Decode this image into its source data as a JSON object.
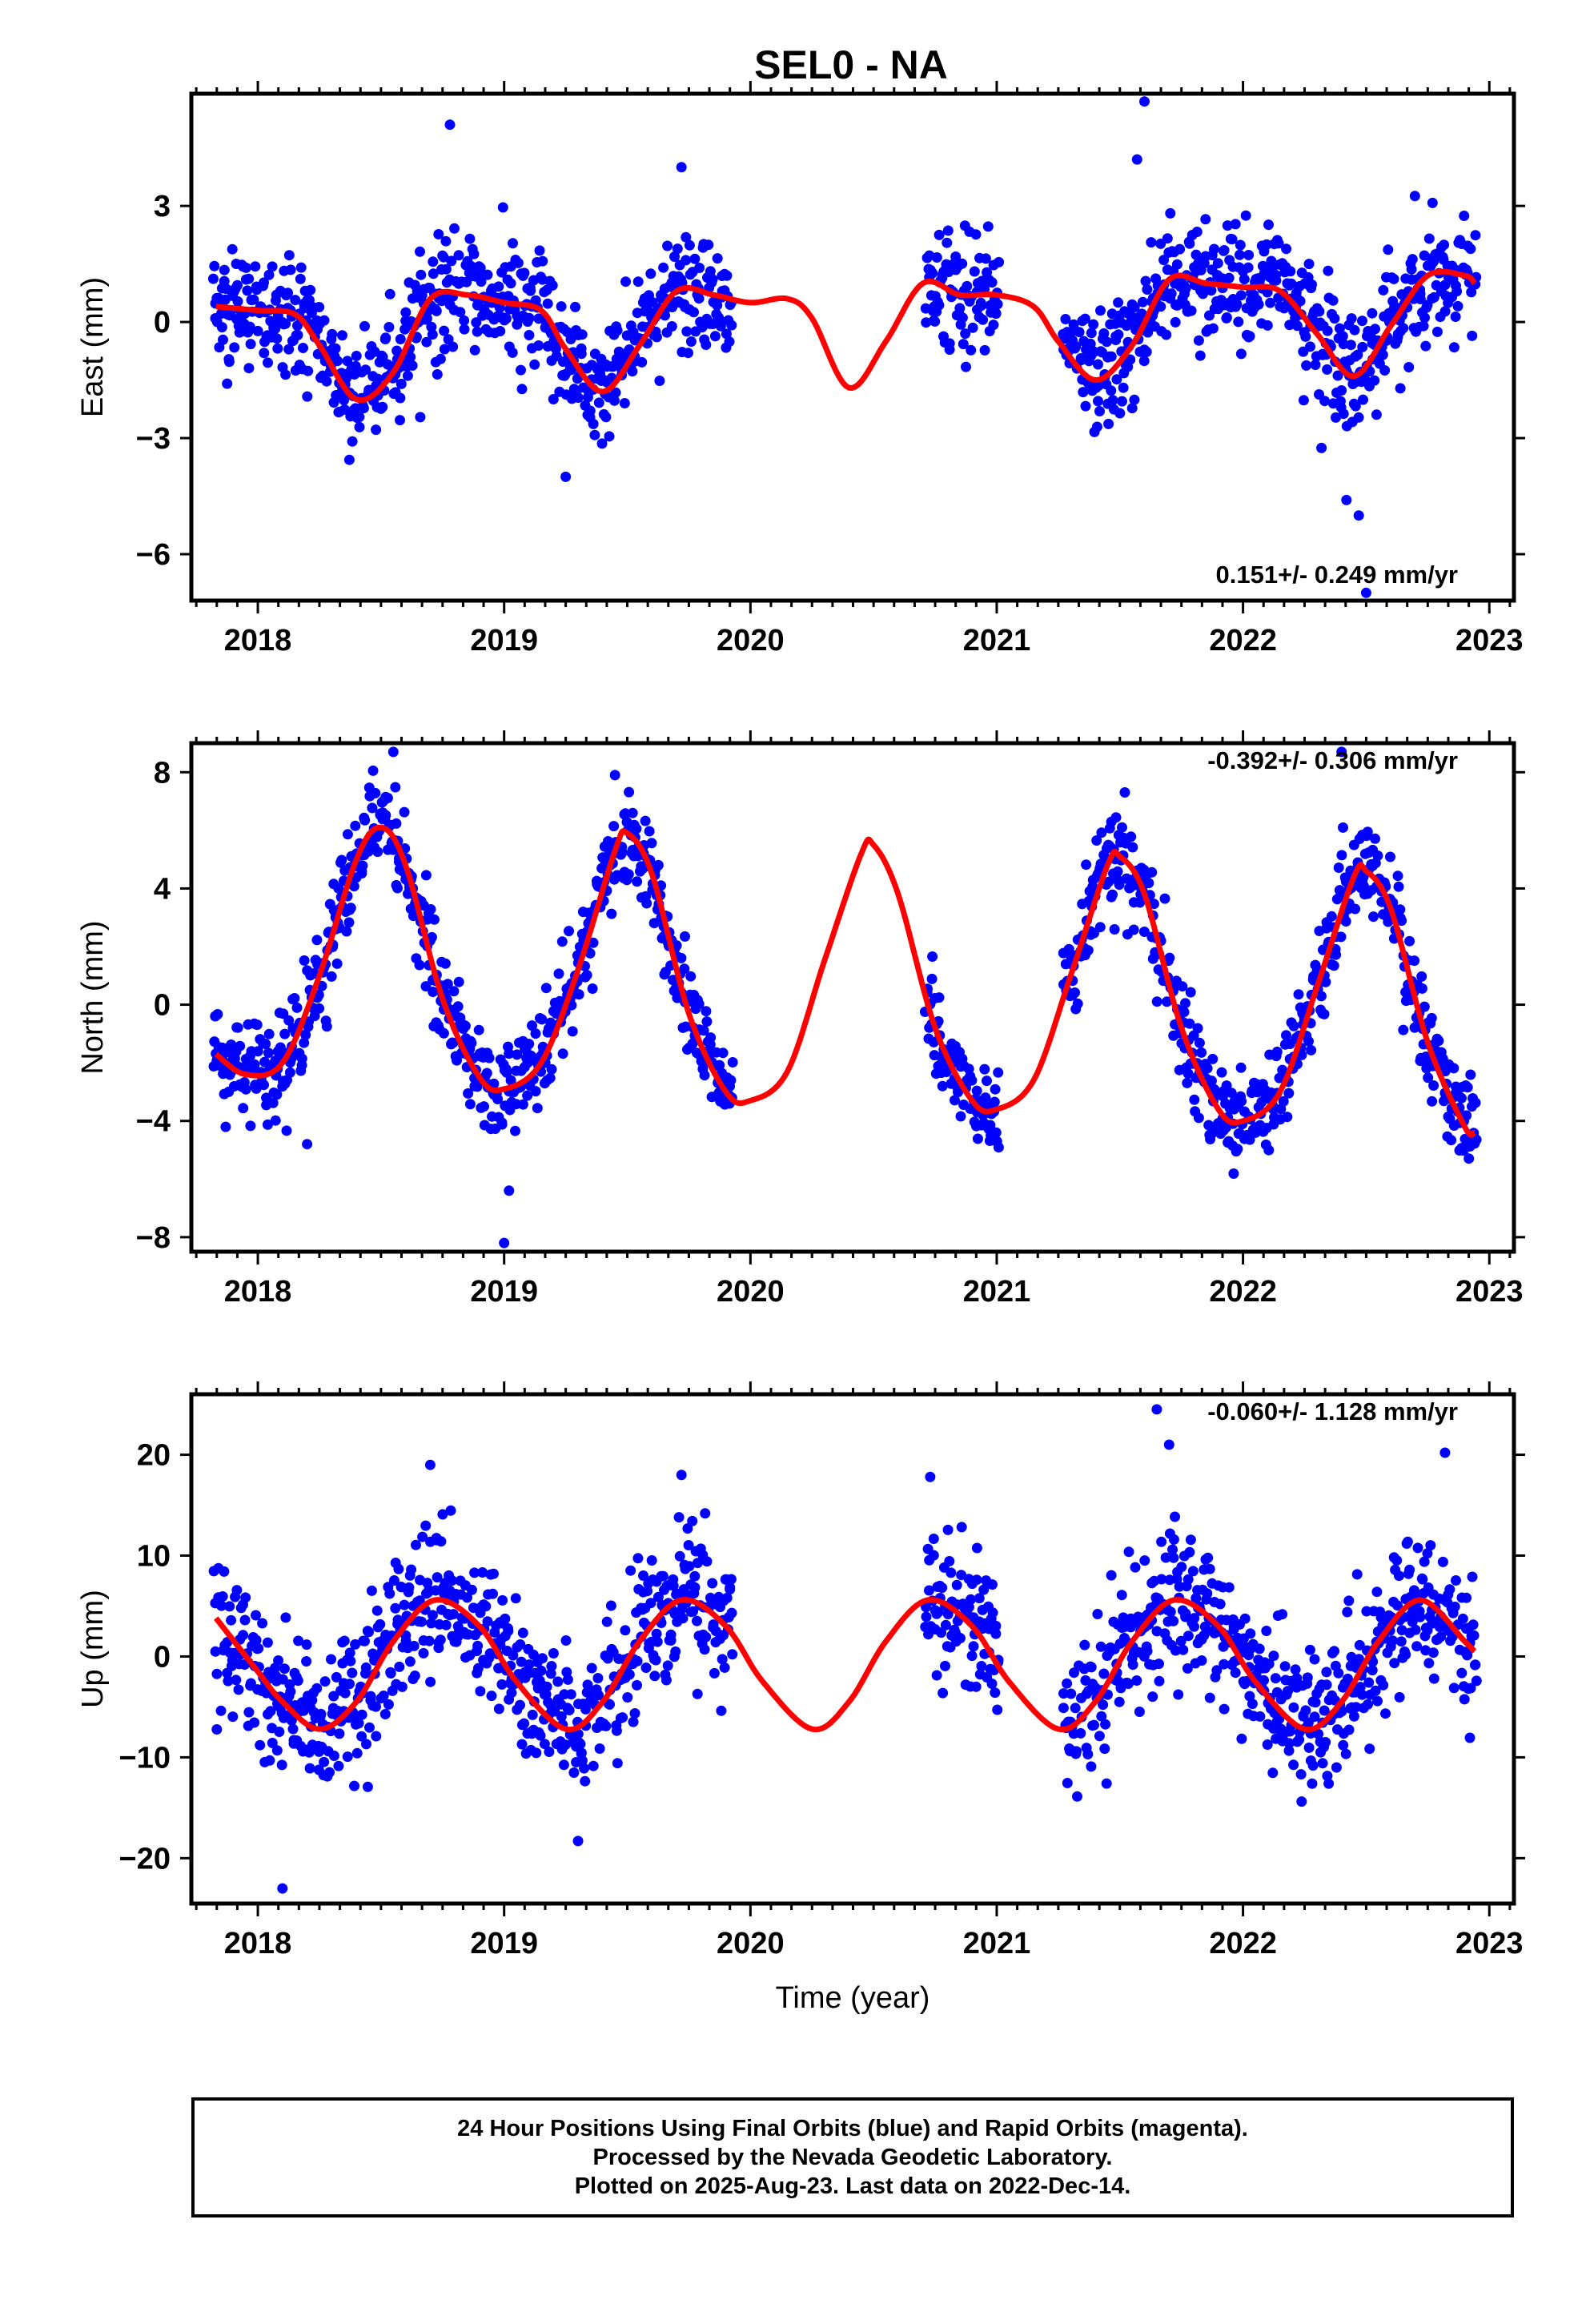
{
  "title": "SEL0 - NA",
  "colors": {
    "points": "#0000ff",
    "model": "#ff0000",
    "frame": "#000000"
  },
  "footer": {
    "line1": "24 Hour Positions Using Final Orbits (blue) and Rapid Orbits (magenta).",
    "line2": "Processed by the Nevada Geodetic Laboratory.",
    "line3": "Plotted on 2025-Aug-23. Last data on 2022-Dec-14."
  },
  "chart_data": [
    {
      "type": "scatter",
      "ylabel": "East (mm)",
      "xlabel": "",
      "rate": "0.151+/- 0.249 mm/yr",
      "rate_position": "bottom-right",
      "xlim": [
        2017.73,
        2023.1
      ],
      "ylim": [
        -7.2,
        5.9
      ],
      "xticks": [
        2018,
        2019,
        2020,
        2021,
        2022,
        2023
      ],
      "yticks": [
        3,
        0,
        -3,
        -6
      ],
      "data_spans": [
        [
          2017.82,
          2019.93
        ],
        [
          2020.71,
          2021.01
        ],
        [
          2021.27,
          2022.95
        ]
      ],
      "gap_model": [
        [
          2019.93,
          2020.71
        ],
        [
          2021.01,
          2021.27
        ]
      ],
      "model": {
        "x": [
          2017.83,
          2018.0,
          2018.15,
          2018.25,
          2018.4,
          2018.55,
          2018.7,
          2018.85,
          2019.0,
          2019.15,
          2019.25,
          2019.4,
          2019.55,
          2019.7,
          2019.85,
          2020.0,
          2020.15,
          2020.25,
          2020.4,
          2020.55,
          2020.7,
          2020.85,
          2021.0,
          2021.15,
          2021.25,
          2021.4,
          2021.55,
          2021.7,
          2021.85,
          2022.0,
          2022.15,
          2022.3,
          2022.45,
          2022.6,
          2022.75,
          2022.9,
          2022.94
        ],
        "y": [
          0.4,
          0.3,
          0.2,
          -0.6,
          -2.0,
          -1.3,
          0.6,
          0.7,
          0.5,
          0.3,
          -0.7,
          -1.8,
          -0.6,
          0.8,
          0.7,
          0.5,
          0.6,
          0.1,
          -1.7,
          -0.5,
          1.0,
          0.7,
          0.7,
          0.4,
          -0.5,
          -1.5,
          -0.6,
          1.1,
          1.0,
          0.9,
          0.8,
          -0.3,
          -1.4,
          -0.1,
          1.2,
          1.2,
          1.0
        ]
      },
      "scatter_sd": 0.75,
      "outliers": [
        {
          "x": 2018.78,
          "y": 5.1
        },
        {
          "x": 2019.72,
          "y": 4.0
        },
        {
          "x": 2021.6,
          "y": 5.7
        },
        {
          "x": 2019.25,
          "y": -4.0
        },
        {
          "x": 2022.47,
          "y": -5.0
        },
        {
          "x": 2022.5,
          "y": -7.0
        },
        {
          "x": 2022.42,
          "y": -4.6
        },
        {
          "x": 2021.57,
          "y": 4.2
        }
      ]
    },
    {
      "type": "scatter",
      "ylabel": "North (mm)",
      "xlabel": "",
      "rate": "-0.392+/- 0.306 mm/yr",
      "rate_position": "top-right",
      "xlim": [
        2017.73,
        2023.1
      ],
      "ylim": [
        -8.5,
        9.0
      ],
      "xticks": [
        2018,
        2019,
        2020,
        2021,
        2022,
        2023
      ],
      "yticks": [
        8,
        4,
        0,
        -4,
        -8
      ],
      "data_spans": [
        [
          2017.82,
          2019.93
        ],
        [
          2020.71,
          2021.01
        ],
        [
          2021.27,
          2022.95
        ]
      ],
      "gap_model": [
        [
          2019.93,
          2020.71
        ],
        [
          2021.01,
          2021.27
        ]
      ],
      "model": {
        "x": [
          2017.83,
          2017.95,
          2018.1,
          2018.25,
          2018.4,
          2018.5,
          2018.6,
          2018.75,
          2018.9,
          2019.0,
          2019.15,
          2019.3,
          2019.45,
          2019.5,
          2019.6,
          2019.75,
          2019.9,
          2020.0,
          2020.15,
          2020.3,
          2020.45,
          2020.5,
          2020.6,
          2020.75,
          2020.9,
          2021.0,
          2021.15,
          2021.3,
          2021.45,
          2021.5,
          2021.6,
          2021.75,
          2021.9,
          2022.0,
          2022.15,
          2022.3,
          2022.45,
          2022.5,
          2022.6,
          2022.75,
          2022.9,
          2022.94
        ],
        "y": [
          -1.7,
          -2.4,
          -2.0,
          1.0,
          5.0,
          6.1,
          4.8,
          0.2,
          -2.5,
          -2.9,
          -2.0,
          1.2,
          5.3,
          5.9,
          4.5,
          -0.3,
          -3.0,
          -3.3,
          -2.3,
          1.5,
          5.2,
          5.5,
          3.8,
          -0.8,
          -3.3,
          -3.6,
          -2.6,
          1.0,
          4.8,
          5.1,
          3.8,
          -0.8,
          -3.6,
          -4.0,
          -3.0,
          0.6,
          4.4,
          4.6,
          3.3,
          -1.3,
          -4.2,
          -4.4
        ]
      },
      "scatter_sd": 0.85,
      "outliers": [
        {
          "x": 2018.55,
          "y": 8.7
        },
        {
          "x": 2019.0,
          "y": -8.2
        },
        {
          "x": 2022.4,
          "y": 8.7
        },
        {
          "x": 2019.45,
          "y": 7.9
        },
        {
          "x": 2018.2,
          "y": -4.8
        },
        {
          "x": 2019.02,
          "y": -6.4
        }
      ]
    },
    {
      "type": "scatter",
      "ylabel": "Up (mm)",
      "xlabel": "Time (year)",
      "rate": "-0.060+/- 1.128 mm/yr",
      "rate_position": "top-right",
      "xlim": [
        2017.73,
        2023.1
      ],
      "ylim": [
        -24.5,
        26.0
      ],
      "xticks": [
        2018,
        2019,
        2020,
        2021,
        2022,
        2023
      ],
      "yticks": [
        20,
        10,
        0,
        -10,
        -20
      ],
      "data_spans": [
        [
          2017.82,
          2019.93
        ],
        [
          2020.71,
          2021.01
        ],
        [
          2021.27,
          2022.95
        ]
      ],
      "gap_model": [
        [
          2019.93,
          2020.71
        ],
        [
          2021.01,
          2021.27
        ]
      ],
      "model": {
        "x": [
          2017.83,
          2018.0,
          2018.1,
          2018.25,
          2018.4,
          2018.55,
          2018.72,
          2018.9,
          2019.05,
          2019.25,
          2019.4,
          2019.55,
          2019.72,
          2019.9,
          2020.05,
          2020.25,
          2020.4,
          2020.55,
          2020.72,
          2020.9,
          2021.05,
          2021.25,
          2021.4,
          2021.55,
          2021.72,
          2021.9,
          2022.05,
          2022.25,
          2022.4,
          2022.55,
          2022.72,
          2022.9,
          2022.94
        ],
        "y": [
          3.8,
          -1.5,
          -4.5,
          -7.2,
          -4.5,
          1.5,
          5.6,
          3.0,
          -2.5,
          -7.2,
          -4.5,
          1.5,
          5.6,
          3.0,
          -2.5,
          -7.2,
          -4.5,
          1.5,
          5.6,
          3.0,
          -2.5,
          -7.2,
          -4.5,
          1.5,
          5.6,
          3.0,
          -2.5,
          -7.2,
          -4.5,
          1.5,
          5.6,
          1.5,
          0.5
        ]
      },
      "scatter_sd": 3.6,
      "outliers": [
        {
          "x": 2018.1,
          "y": -23.0
        },
        {
          "x": 2021.65,
          "y": 24.5
        },
        {
          "x": 2021.7,
          "y": 21.0
        },
        {
          "x": 2018.7,
          "y": 19.0
        },
        {
          "x": 2019.72,
          "y": 18.0
        },
        {
          "x": 2022.82,
          "y": 20.2
        },
        {
          "x": 2020.73,
          "y": 17.8
        },
        {
          "x": 2019.3,
          "y": -18.3
        }
      ]
    }
  ]
}
